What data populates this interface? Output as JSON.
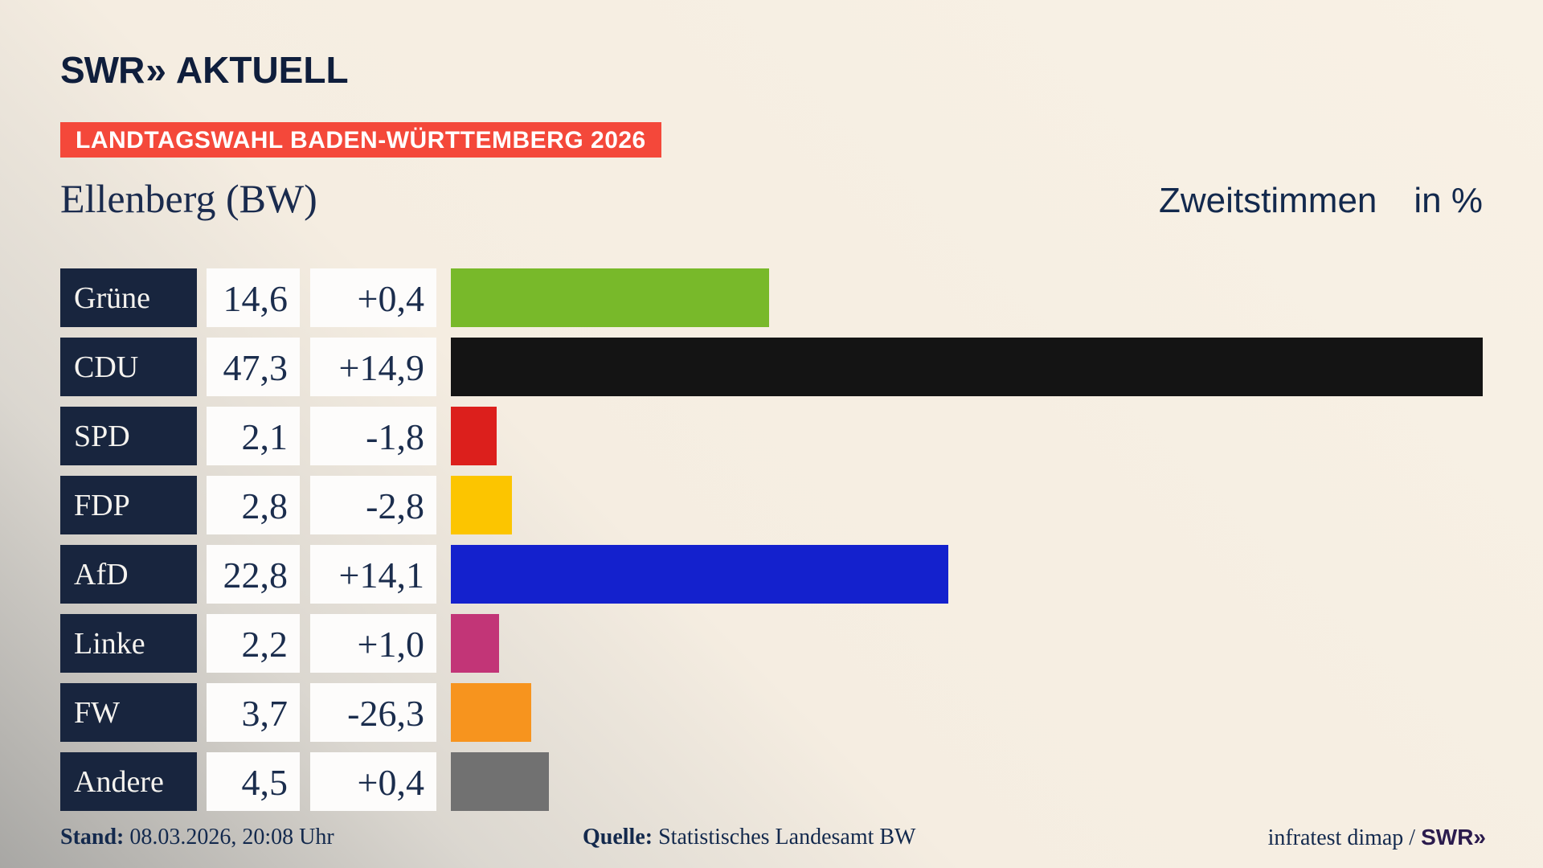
{
  "header": {
    "logo": {
      "swr": "SWR",
      "chevrons": "»",
      "brand": "AKTUELL"
    },
    "banner": "LANDTAGSWAHL BADEN-WÜRTTEMBERG 2026"
  },
  "chart_data": {
    "type": "bar",
    "orientation": "horizontal",
    "title": "Ellenberg (BW)",
    "value_label": "Zweitstimmen",
    "unit": "in %",
    "xlim": [
      0,
      47.3
    ],
    "grid": false,
    "legend": false,
    "categories": [
      "Grüne",
      "CDU",
      "SPD",
      "FDP",
      "AfD",
      "Linke",
      "FW",
      "Andere"
    ],
    "series": [
      {
        "name": "Zweitstimmen (%)",
        "values": [
          14.6,
          47.3,
          2.1,
          2.8,
          22.8,
          2.2,
          3.7,
          4.5
        ]
      },
      {
        "name": "change",
        "values": [
          0.4,
          14.9,
          -1.8,
          -2.8,
          14.1,
          1.0,
          -26.3,
          0.4
        ]
      }
    ],
    "rows": [
      {
        "party": "Grüne",
        "value": "14,6",
        "change": "+0,4",
        "pct": 14.6,
        "color": "#78b92a"
      },
      {
        "party": "CDU",
        "value": "47,3",
        "change": "+14,9",
        "pct": 47.3,
        "color": "#141414"
      },
      {
        "party": "SPD",
        "value": "2,1",
        "change": "-1,8",
        "pct": 2.1,
        "color": "#dc1f1c"
      },
      {
        "party": "FDP",
        "value": "2,8",
        "change": "-2,8",
        "pct": 2.8,
        "color": "#fcc500"
      },
      {
        "party": "AfD",
        "value": "22,8",
        "change": "+14,1",
        "pct": 22.8,
        "color": "#1421cd"
      },
      {
        "party": "Linke",
        "value": "2,2",
        "change": "+1,0",
        "pct": 2.2,
        "color": "#c23577"
      },
      {
        "party": "FW",
        "value": "3,7",
        "change": "-26,3",
        "pct": 3.7,
        "color": "#f7941e"
      },
      {
        "party": "Andere",
        "value": "4,5",
        "change": "+0,4",
        "pct": 4.5,
        "color": "#717171"
      }
    ]
  },
  "footer": {
    "stand_label": "Stand:",
    "stand_value": "08.03.2026, 20:08 Uhr",
    "quelle_label": "Quelle:",
    "quelle_value": "Statistisches Landesamt BW",
    "credit_text": "infratest dimap /",
    "credit_logo_swr": "SWR",
    "credit_logo_chevrons": "»"
  },
  "colors": {
    "background_top": "#f5ede1",
    "background_bottom_left": "#a8a7a4",
    "banner_red": "#f4483a",
    "label_box_navy": "#18253e",
    "text_navy": "#13294d",
    "value_box_white": "#fdfcfb",
    "logo_navy": "#0f1e3c",
    "credit_logo_purple": "#2b1b4d"
  }
}
